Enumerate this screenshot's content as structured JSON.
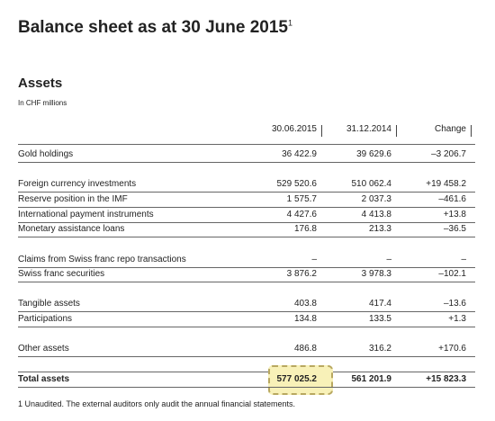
{
  "header": {
    "title": "Balance sheet as at 30 June 2015",
    "title_note": "1"
  },
  "section": {
    "title": "Assets",
    "unit": "In CHF millions"
  },
  "table": {
    "columns": [
      "30.06.2015",
      "31.12.2014",
      "Change"
    ],
    "groups": [
      [
        [
          "Gold holdings",
          "36 422.9",
          "39 629.6",
          "–3 206.7"
        ]
      ],
      [
        [
          "Foreign currency investments",
          "529 520.6",
          "510 062.4",
          "+19 458.2"
        ],
        [
          "Reserve position in the IMF",
          "1 575.7",
          "2 037.3",
          "–461.6"
        ],
        [
          "International payment instruments",
          "4 427.6",
          "4 413.8",
          "+13.8"
        ],
        [
          "Monetary assistance loans",
          "176.8",
          "213.3",
          "–36.5"
        ]
      ],
      [
        [
          "Claims from Swiss franc repo transactions",
          "–",
          "–",
          "–"
        ],
        [
          "Swiss franc securities",
          "3 876.2",
          "3 978.3",
          "–102.1"
        ]
      ],
      [
        [
          "Tangible assets",
          "403.8",
          "417.4",
          "–13.6"
        ],
        [
          "Participations",
          "134.8",
          "133.5",
          "+1.3"
        ]
      ],
      [
        [
          "Other assets",
          "486.8",
          "316.2",
          "+170.6"
        ]
      ],
      [
        [
          "Total assets",
          "577 025.2",
          "561 201.9",
          "+15 823.3"
        ]
      ]
    ]
  },
  "footnote": "1  Unaudited. The external auditors only audit the annual financial statements."
}
